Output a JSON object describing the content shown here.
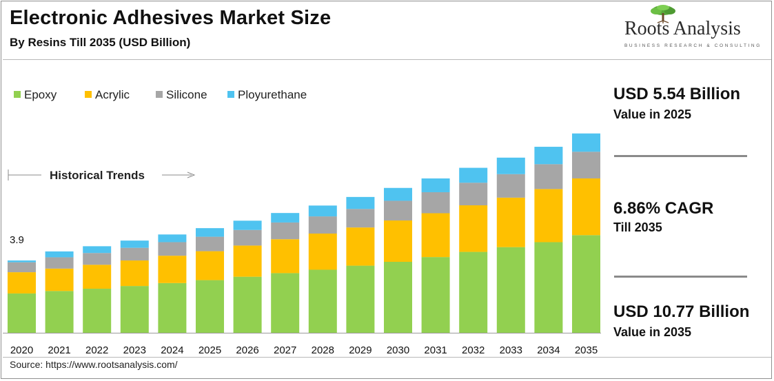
{
  "header": {
    "title": "Electronic Adhesives Market Size",
    "subtitle": "By Resins Till 2035 (USD Billion)"
  },
  "logo": {
    "name": "Roots Analysis",
    "tagline": "BUSINESS RESEARCH & CONSULTING",
    "icon": "tree-icon"
  },
  "kpis": [
    {
      "value": "USD 5.54 Billion",
      "label": "Value in 2025"
    },
    {
      "value": "6.86% CAGR",
      "label": "Till 2035"
    },
    {
      "value": "USD 10.77 Billion",
      "label": "Value in 2035"
    }
  ],
  "annotation": {
    "historical_label": "Historical Trends",
    "first_total_label": "3.9"
  },
  "source": "Source: https://www.rootsanalysis.com/",
  "chart_data": {
    "type": "bar",
    "stacked": true,
    "categories": [
      "2020",
      "2021",
      "2022",
      "2023",
      "2024",
      "2025",
      "2026",
      "2027",
      "2028",
      "2029",
      "2030",
      "2031",
      "2032",
      "2033",
      "2034",
      "2035"
    ],
    "series": [
      {
        "name": "Epoxy",
        "color": "#92d050",
        "values": [
          1.74,
          1.85,
          1.95,
          2.07,
          2.2,
          2.33,
          2.48,
          2.64,
          2.79,
          2.97,
          3.14,
          3.35,
          3.58,
          3.79,
          4.01,
          4.32
        ]
      },
      {
        "name": "Acrylic",
        "color": "#ffc000",
        "values": [
          0.94,
          0.99,
          1.06,
          1.13,
          1.21,
          1.28,
          1.38,
          1.5,
          1.6,
          1.69,
          1.83,
          1.94,
          2.06,
          2.19,
          2.35,
          2.51
        ]
      },
      {
        "name": "Silicone",
        "color": "#a6a6a6",
        "values": [
          0.44,
          0.5,
          0.52,
          0.56,
          0.6,
          0.64,
          0.69,
          0.74,
          0.76,
          0.82,
          0.87,
          0.93,
          1.0,
          1.04,
          1.1,
          1.18
        ]
      },
      {
        "name": "Ployurethane",
        "color": "#4fc3f0",
        "values": [
          0.08,
          0.26,
          0.3,
          0.32,
          0.34,
          0.38,
          0.41,
          0.42,
          0.48,
          0.53,
          0.57,
          0.61,
          0.66,
          0.73,
          0.77,
          0.81
        ]
      }
    ],
    "ylim": [
      0,
      11
    ],
    "legend": "top-left",
    "grid": false
  }
}
